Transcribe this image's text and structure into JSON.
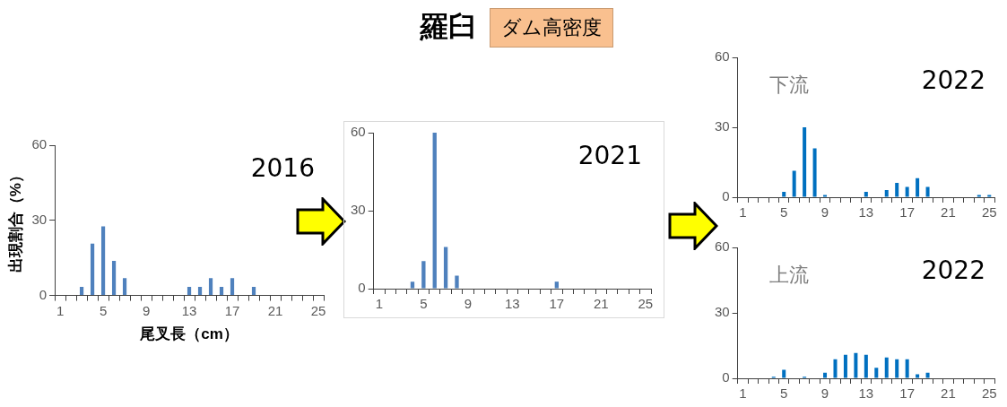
{
  "chart_data": [
    {
      "type": "other",
      "title": "羅臼",
      "subtitle": "ダム高密度"
    },
    {
      "type": "bar",
      "xlabel": "尾叉長（cm）",
      "ylabel": "出現割合（%）",
      "annotations": [
        "2016"
      ],
      "categories": [
        "1",
        null,
        null,
        null,
        "5",
        null,
        null,
        null,
        "9",
        null,
        null,
        null,
        "13",
        null,
        null,
        null,
        "17",
        null,
        null,
        null,
        "21",
        null,
        null,
        null,
        "25"
      ],
      "values": [
        0,
        0,
        3.4,
        20.7,
        27.6,
        13.8,
        6.9,
        0,
        0,
        0,
        0,
        0,
        3.4,
        3.4,
        6.9,
        3.4,
        6.9,
        0,
        3.4,
        0,
        0,
        0,
        0,
        0,
        0
      ],
      "color": "#4f81bd",
      "ylim": [
        0,
        60
      ],
      "yticks": [
        0,
        30,
        60
      ]
    },
    {
      "type": "bar",
      "annotations": [
        "2021"
      ],
      "categories": [
        "1",
        null,
        null,
        null,
        "5",
        null,
        null,
        null,
        "9",
        null,
        null,
        null,
        "13",
        null,
        null,
        null,
        "17",
        null,
        null,
        null,
        "21",
        null,
        null,
        null,
        "25"
      ],
      "values": [
        0,
        0,
        0,
        2.7,
        10.6,
        60,
        16,
        5,
        0,
        0,
        0,
        0,
        0,
        0,
        0,
        0,
        2.7,
        0,
        0,
        0,
        0,
        0,
        0,
        0,
        0
      ],
      "color": "#4f81bd",
      "ylim": [
        0,
        60
      ],
      "yticks": [
        0,
        30,
        60
      ]
    },
    {
      "type": "bar",
      "annotations": [
        "下流",
        "2022"
      ],
      "categories": [
        "1",
        null,
        null,
        null,
        "5",
        null,
        null,
        null,
        "9",
        null,
        null,
        null,
        "13",
        null,
        null,
        null,
        "17",
        null,
        null,
        null,
        "21",
        null,
        null,
        null,
        "25"
      ],
      "values": [
        0,
        0,
        0,
        0,
        2.3,
        11.3,
        30,
        21,
        1,
        0,
        0,
        0,
        2.3,
        0,
        3.1,
        6.2,
        4.4,
        8.2,
        4.4,
        0,
        0,
        0,
        0,
        1,
        1
      ],
      "color": "#0070c0",
      "ylim": [
        0,
        60
      ],
      "yticks": [
        0,
        30,
        60
      ]
    },
    {
      "type": "bar",
      "annotations": [
        "上流",
        "2022"
      ],
      "categories": [
        "1",
        null,
        null,
        null,
        "5",
        null,
        null,
        null,
        "9",
        null,
        null,
        null,
        "13",
        null,
        null,
        null,
        "17",
        null,
        null,
        null,
        "21",
        null,
        null,
        null,
        "25"
      ],
      "values": [
        0,
        0,
        0,
        0.7,
        3.9,
        0,
        0.7,
        0,
        2.6,
        8.7,
        10.8,
        11.6,
        10.8,
        4.8,
        9.6,
        8.7,
        8.7,
        1.9,
        2.6,
        0,
        0,
        0,
        0,
        0,
        0
      ],
      "color": "#0070c0",
      "ylim": [
        0,
        60
      ],
      "yticks": [
        0,
        30,
        60
      ]
    }
  ]
}
